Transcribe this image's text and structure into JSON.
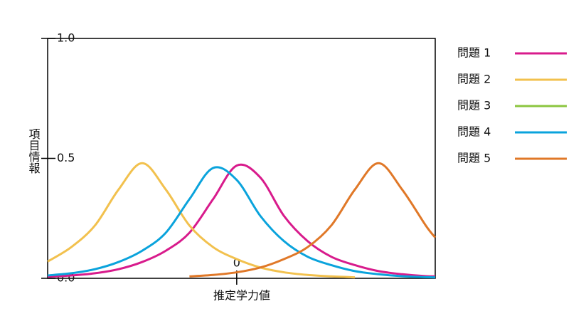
{
  "chart_data": {
    "type": "line",
    "xlabel": "推定学力値",
    "ylabel": "項目情報",
    "x": [
      -4,
      -3.5,
      -3,
      -2.5,
      -2,
      -1.5,
      -1,
      -0.5,
      0,
      0.5,
      1,
      1.5,
      2,
      2.5,
      3,
      3.5,
      4,
      4.2
    ],
    "series": [
      {
        "name": "問題 1",
        "color": "#d81b8c",
        "values": [
          0.007,
          0.012,
          0.021,
          0.038,
          0.068,
          0.115,
          0.19,
          0.33,
          0.47,
          0.42,
          0.26,
          0.155,
          0.09,
          0.055,
          0.03,
          0.017,
          0.009,
          0.008
        ]
      },
      {
        "name": "問題 2",
        "color": "#f2c14e",
        "values": [
          0.07,
          0.13,
          0.22,
          0.37,
          0.48,
          0.37,
          0.22,
          0.13,
          0.08,
          0.045,
          0.025,
          0.014,
          0.008,
          0.004,
          null,
          null,
          null,
          null
        ]
      },
      {
        "name": "問題 3",
        "color": "#8cc63f",
        "values": [
          null,
          null,
          null,
          null,
          null,
          null,
          null,
          null,
          null,
          null,
          null,
          null,
          null,
          null,
          null,
          null,
          null,
          null
        ]
      },
      {
        "name": "問題 4",
        "color": "#0aa3dc",
        "values": [
          0.012,
          0.021,
          0.038,
          0.068,
          0.115,
          0.19,
          0.33,
          0.46,
          0.41,
          0.26,
          0.155,
          0.09,
          0.055,
          0.03,
          0.017,
          0.009,
          0.005,
          0.004
        ]
      },
      {
        "name": "問題 5",
        "color": "#e07828",
        "values": [
          null,
          null,
          null,
          null,
          null,
          null,
          0.008,
          0.014,
          0.025,
          0.045,
          0.08,
          0.13,
          0.22,
          0.37,
          0.48,
          0.37,
          0.22,
          0.17
        ]
      }
    ],
    "xlim": [
      -4,
      4.2
    ],
    "ylim": [
      0,
      1
    ],
    "xticks": [
      0
    ],
    "yticks": [
      {
        "value": 0,
        "label": "0.0"
      },
      0.5,
      {
        "value": 1,
        "label": "1.0"
      }
    ],
    "legend": "right"
  }
}
